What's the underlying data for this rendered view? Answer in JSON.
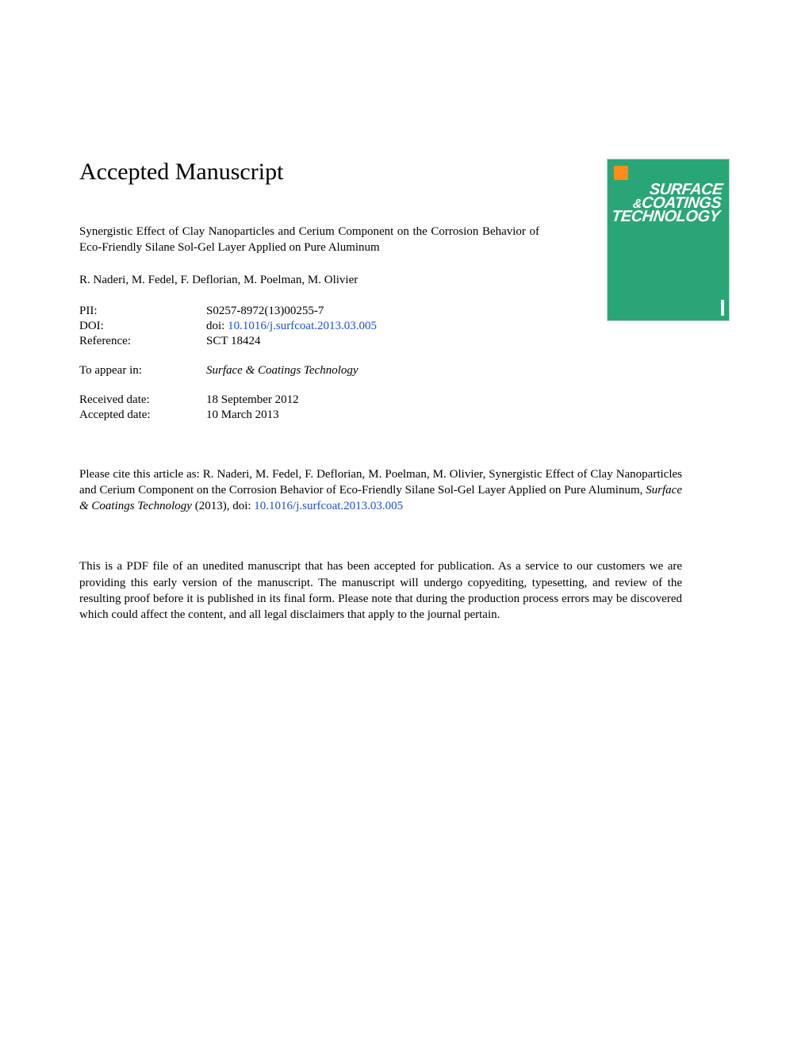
{
  "heading": "Accepted Manuscript",
  "title": "Synergistic Effect of Clay Nanoparticles and Cerium Component on the Corrosion Behavior of Eco-Friendly Silane Sol-Gel Layer Applied on Pure Aluminum",
  "authors": "R. Naderi, M. Fedel, F. Deflorian, M. Poelman, M. Olivier",
  "meta": {
    "pii_label": "PII:",
    "pii_value": "S0257-8972(13)00255-7",
    "doi_label": "DOI:",
    "doi_prefix": "doi: ",
    "doi_link": "10.1016/j.surfcoat.2013.03.005",
    "ref_label": "Reference:",
    "ref_value": "SCT 18424",
    "appear_label": "To appear in:",
    "appear_value": "Surface & Coatings Technology",
    "received_label": "Received date:",
    "received_value": "18 September 2012",
    "accepted_label": "Accepted date:",
    "accepted_value": "10 March 2013"
  },
  "citation": {
    "prefix": "Please cite this article as: R. Naderi, M. Fedel, F. Deflorian, M. Poelman, M. Olivier, Synergistic Effect of Clay Nanoparticles and Cerium Component on the Corrosion Behavior of Eco-Friendly Silane Sol-Gel Layer Applied on Pure Aluminum, ",
    "journal": "Surface & Coatings Technology",
    "year": " (2013),  doi: ",
    "doi_link": "10.1016/j.surfcoat.2013.03.005"
  },
  "disclaimer": "This is a PDF file of an unedited manuscript that has been accepted for publication. As a service to our customers we are providing this early version of the manuscript. The manuscript will undergo copyediting, typesetting, and review of the resulting proof before it is published in its final form. Please note that during the production process errors may be discovered which could affect the content, and all legal disclaimers that apply to the journal pertain.",
  "cover": {
    "line1": "SURFACE",
    "line2_amp": "&",
    "line2": "COATINGS",
    "line3": "TECHNOLOGY",
    "bg_color": "#2aa676",
    "text_color": "#ffffff"
  },
  "colors": {
    "link": "#1a4fd6",
    "text": "#000000",
    "background": "#ffffff"
  }
}
